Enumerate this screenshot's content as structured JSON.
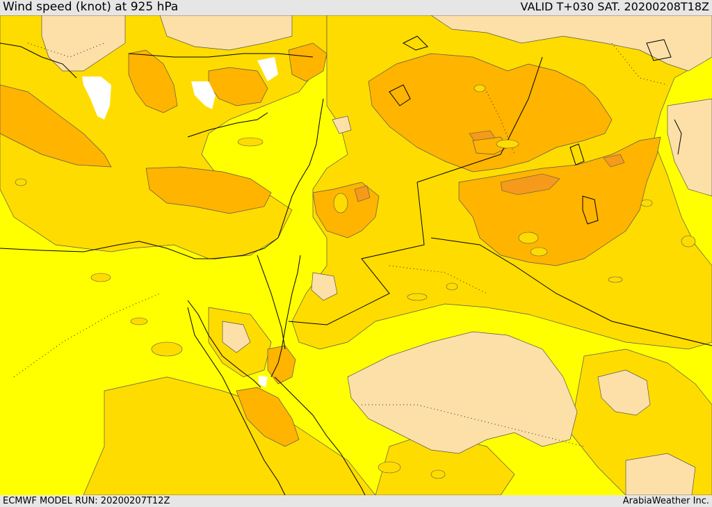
{
  "header": {
    "title": "Wind speed (knot) at 925 hPa",
    "valid": "VALID T+030 SAT. 20200208T18Z"
  },
  "footer": {
    "model_run": "ECMWF MODEL RUN: 20200207T12Z",
    "credit": "ArabiaWeather Inc."
  },
  "map": {
    "colors": {
      "sea_land_base": "#ffff00",
      "level_light": "#ffdc00",
      "level_orange": "#ffb400",
      "level_dark": "#f59a1a",
      "calm_beige": "#fde0a8",
      "no_data_white": "#ffffff",
      "contour": "#555555",
      "coast_border": "#000000"
    }
  }
}
